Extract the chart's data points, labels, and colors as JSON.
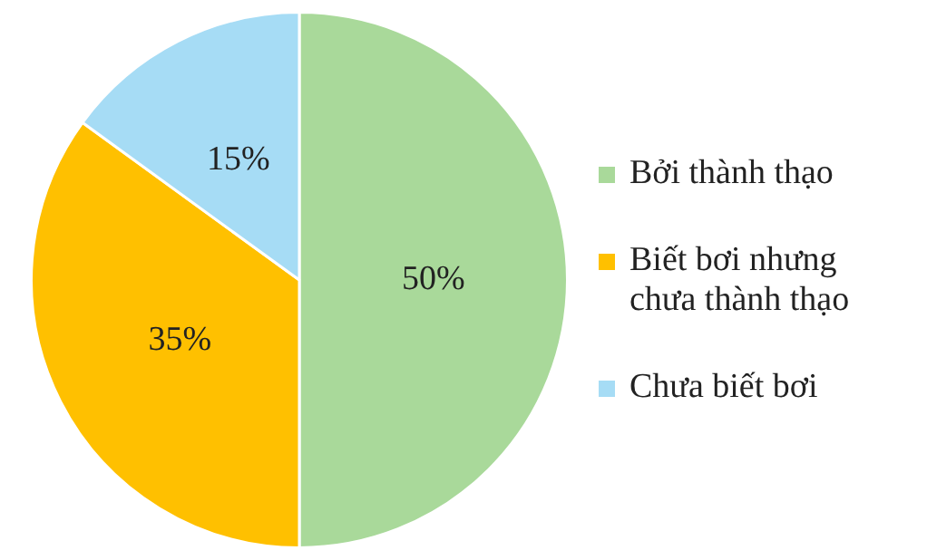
{
  "chart_data": {
    "type": "pie",
    "categories": [
      "Bởi thành thạo",
      "Biết bơi nhưng chưa thành thạo",
      "Chưa biết bơi"
    ],
    "values": [
      50,
      35,
      15
    ],
    "colors": [
      "#a9d99a",
      "#ffc000",
      "#a6dcf5"
    ],
    "value_labels": [
      "50%",
      "35%",
      "15%"
    ],
    "legend": "right"
  }
}
